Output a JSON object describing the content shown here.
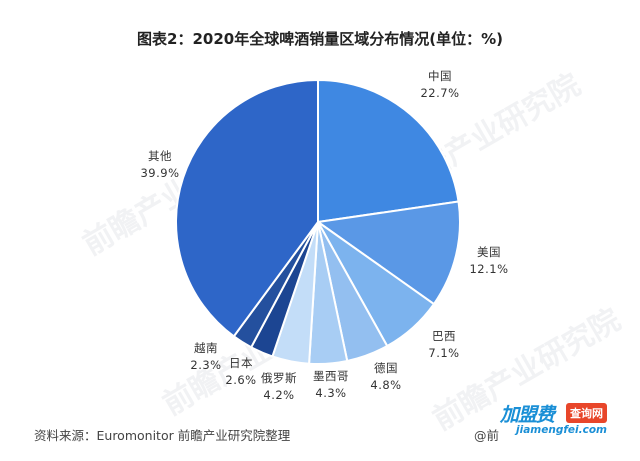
{
  "title": "图表2：2020年全球啤酒销量区域分布情况(单位：%)",
  "source": "资料来源：Euromonitor 前瞻产业研究院整理",
  "credit": "@前",
  "brand": {
    "main": "加盟费",
    "badge": "查询网",
    "url": "jiamengfei.com"
  },
  "watermark": "前瞻产业研究院",
  "chart_data": {
    "type": "pie",
    "title": "图表2：2020年全球啤酒销量区域分布情况(单位：%)",
    "unit": "%",
    "slices": [
      {
        "name": "中国",
        "value": 22.7,
        "label": "22.7%",
        "color": "#3f88e2"
      },
      {
        "name": "美国",
        "value": 12.1,
        "label": "12.1%",
        "color": "#5a98e6"
      },
      {
        "name": "巴西",
        "value": 7.1,
        "label": "7.1%",
        "color": "#7cb3ee"
      },
      {
        "name": "德国",
        "value": 4.8,
        "label": "4.8%",
        "color": "#93bff0"
      },
      {
        "name": "墨西哥",
        "value": 4.3,
        "label": "4.3%",
        "color": "#a8cdf4"
      },
      {
        "name": "俄罗斯",
        "value": 4.2,
        "label": "4.2%",
        "color": "#c3ddf8"
      },
      {
        "name": "日本",
        "value": 2.6,
        "label": "2.6%",
        "color": "#1c4592"
      },
      {
        "name": "越南",
        "value": 2.3,
        "label": "2.3%",
        "color": "#24509e"
      },
      {
        "name": "其他",
        "value": 39.9,
        "label": "39.9%",
        "color": "#2e66c8"
      }
    ]
  }
}
